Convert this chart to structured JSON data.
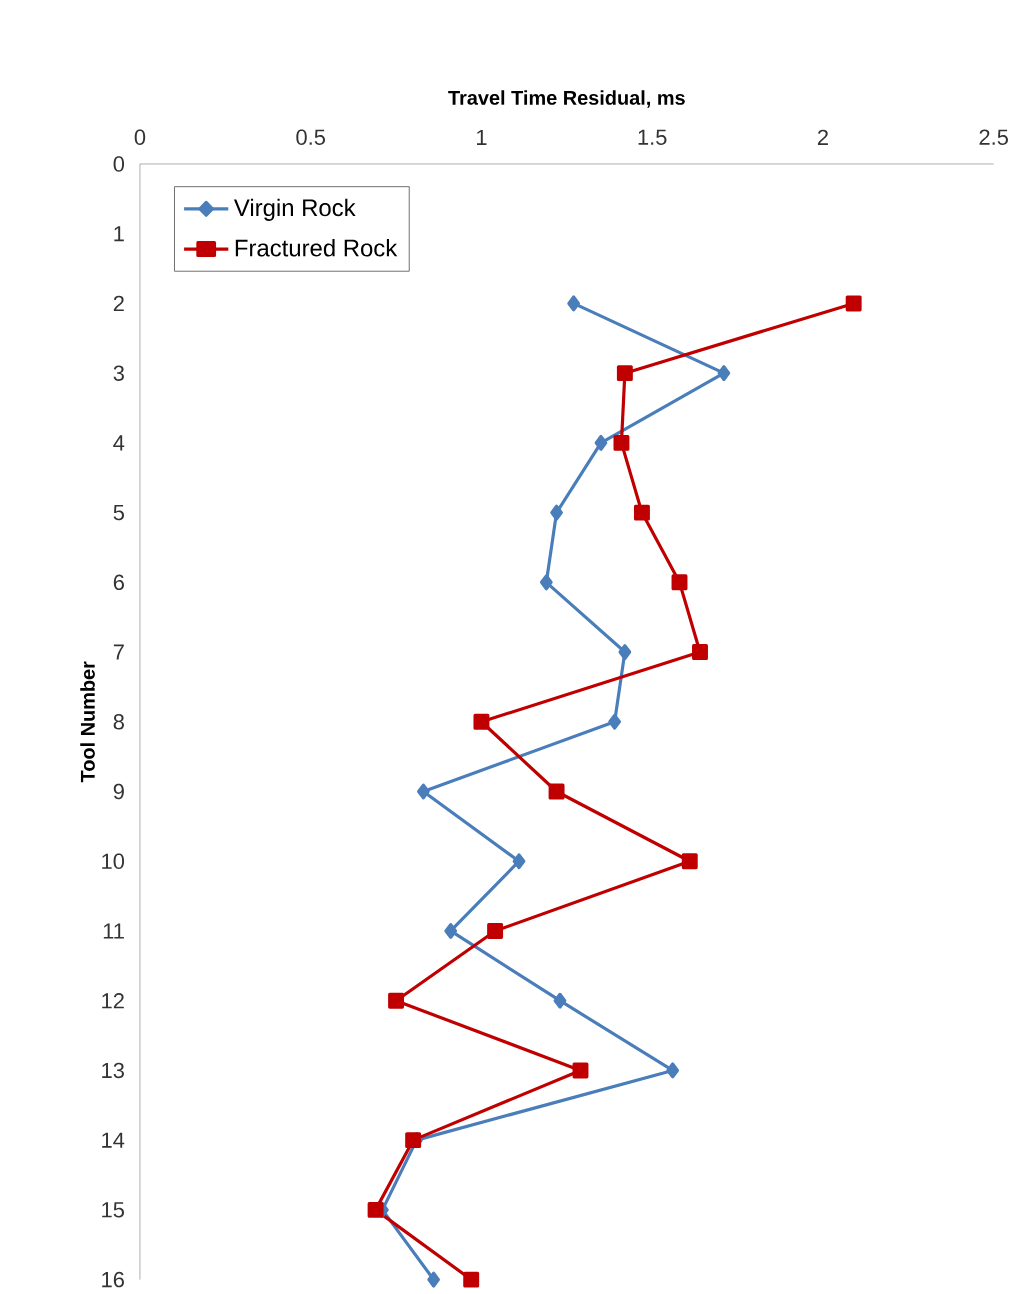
{
  "chart_data": {
    "type": "line",
    "xlabel": "Travel Time Residual, ms",
    "ylabel": "Tool Number",
    "xlim": [
      0,
      2.5
    ],
    "xticks": [
      0,
      0.5,
      1,
      1.5,
      2,
      2.5
    ],
    "ylim": [
      16,
      0
    ],
    "yticks": [
      0,
      1,
      2,
      3,
      4,
      5,
      6,
      7,
      8,
      9,
      10,
      11,
      12,
      13,
      14,
      15,
      16
    ],
    "legend": "top left",
    "grid": false,
    "line_style": "solid",
    "series": [
      {
        "name": "Virgin Rock",
        "color": "#4a7ebb",
        "marker": "diamond",
        "x": [
          1.27,
          1.71,
          1.35,
          1.22,
          1.19,
          1.42,
          1.39,
          0.83,
          1.11,
          0.91,
          1.23,
          1.56,
          0.81,
          0.71,
          0.86
        ],
        "values": [
          2,
          3,
          4,
          5,
          6,
          7,
          8,
          9,
          10,
          11,
          12,
          13,
          14,
          15,
          16
        ]
      },
      {
        "name": "Fractured Rock",
        "color": "#c00000",
        "marker": "square",
        "x": [
          2.09,
          1.42,
          1.41,
          1.47,
          1.58,
          1.64,
          1.0,
          1.22,
          1.61,
          1.04,
          0.75,
          1.29,
          0.8,
          0.69,
          0.97
        ],
        "values": [
          2,
          3,
          4,
          5,
          6,
          7,
          8,
          9,
          10,
          11,
          12,
          13,
          14,
          15,
          16
        ]
      }
    ]
  }
}
